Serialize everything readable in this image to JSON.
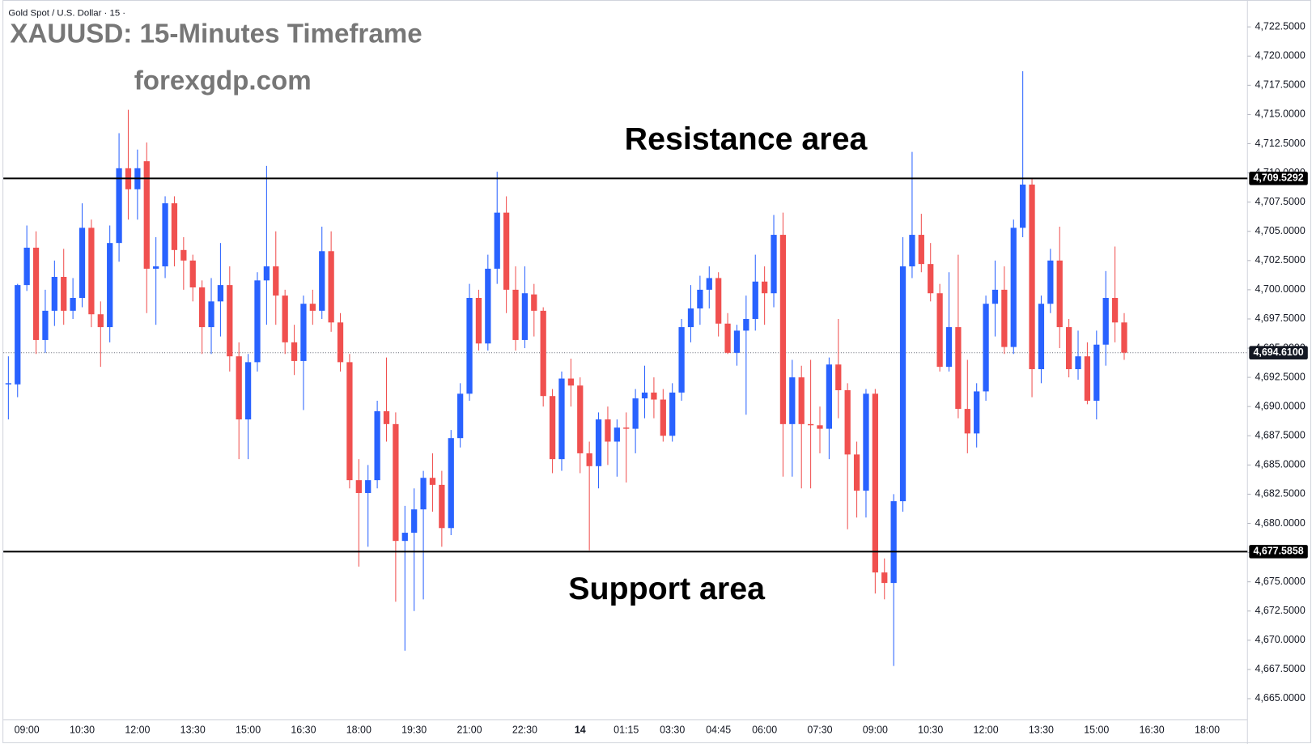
{
  "chart_data": {
    "type": "candlestick",
    "header": "Gold Spot / U.S. Dollar · 15 ·",
    "title": "XAUUSD: 15-Minutes Timeframe",
    "subtitle": "forexgdp.com",
    "annotations": [
      "Resistance area",
      "Support area"
    ],
    "up_color": "#2962ff",
    "down_color": "#f0504f",
    "categories": [
      null,
      null,
      "09:00",
      null,
      null,
      null,
      null,
      null,
      "10:30",
      null,
      null,
      null,
      null,
      null,
      "12:00",
      null,
      null,
      null,
      null,
      null,
      "13:30",
      null,
      null,
      null,
      null,
      null,
      "15:00",
      null,
      null,
      null,
      null,
      null,
      "16:30",
      null,
      null,
      null,
      null,
      null,
      "18:00",
      null,
      null,
      null,
      null,
      null,
      "19:30",
      null,
      null,
      null,
      null,
      null,
      "21:00",
      null,
      null,
      null,
      null,
      null,
      "22:30",
      null,
      null,
      null,
      null,
      null,
      "14",
      null,
      null,
      null,
      null,
      "01:15",
      null,
      null,
      null,
      null,
      "03:30",
      null,
      null,
      null,
      null,
      "04:45",
      null,
      null,
      null,
      null,
      "06:00",
      null,
      null,
      null,
      null,
      null,
      "07:30",
      null,
      null,
      null,
      null,
      null,
      "09:00",
      null,
      null,
      null,
      null,
      null,
      "10:30",
      null,
      null,
      null,
      null,
      null,
      "12:00",
      null,
      null,
      null,
      null,
      null,
      "13:30",
      null,
      null,
      null,
      null,
      null,
      "15:00",
      null,
      null,
      null,
      null,
      null,
      "16:30",
      null,
      null,
      null,
      null,
      null,
      "18:00",
      null
    ],
    "open": [
      4691.9,
      4691.9,
      4700.4,
      4703.6,
      4695.7,
      4698.2,
      4701.1,
      4698.2,
      4699.3,
      4705.3,
      4697.9,
      4696.8,
      4704,
      4710.4,
      4708.6,
      4711,
      4701.8,
      4702,
      4707.4,
      4703.4,
      4702.5,
      4700.2,
      4696.8,
      4699,
      4700.4,
      4694.3,
      4688.9,
      4693.8,
      4700.8,
      4702,
      4699.5,
      4695.5,
      4693.9,
      4698.8,
      4698.2,
      4703.3,
      4697.2,
      4693.8,
      4683.7,
      4682.6,
      4683.7,
      4689.6,
      4688.5,
      4678.5,
      4679.2,
      4681.2,
      4683.9,
      4683.3,
      4679.6,
      4687.3,
      4691.1,
      4699.3,
      4695.4,
      4701.8,
      4706.6,
      4700,
      4695.7,
      4699.6,
      4698.2,
      4690.9,
      4685.5,
      4692.4,
      4691.8,
      4686,
      4684.9,
      4688.9,
      4687,
      4688.2,
      4688.1,
      4690.7,
      4691.2,
      4690.6,
      4687.5,
      4691.2,
      4696.8,
      4698.4,
      4700,
      4701,
      4697.1,
      4694.6,
      4696.5,
      4697.5,
      4700.7,
      4699.7,
      4704.7,
      4688.5,
      4692.5,
      4688.5,
      4688.4,
      4688.1,
      4693.6,
      4691.4,
      4685.9,
      4682.8,
      4691.1,
      4675.8,
      4674.9,
      4681.9,
      4702,
      4704.7,
      4702.2,
      4699.7,
      4693.4,
      4696.8,
      4689.8,
      4687.7,
      4691.3,
      4698.8,
      4700,
      4695.1,
      4705.3,
      4709,
      4693.2,
      4698.8,
      4702.5,
      4696.8,
      4693.2,
      4694.3,
      4690.5,
      4695.3,
      4699.3,
      4697.2,
      null,
      null,
      null,
      null,
      null,
      null,
      null,
      null,
      null,
      null
    ],
    "high": [
      4694.3,
      4700.5,
      4705.5,
      4705,
      4700,
      4702.5,
      4703.5,
      4701,
      4707.4,
      4706,
      4699,
      4705.5,
      4713.4,
      4715.4,
      4712,
      4712.6,
      4704.5,
      4708,
      4708,
      4704.5,
      4703,
      4700.8,
      4701,
      4704,
      4702,
      4695.5,
      4694.5,
      4701.5,
      4710.6,
      4705,
      4700,
      4697,
      4699.5,
      4700,
      4705.4,
      4705,
      4698,
      4694.5,
      4685.5,
      4685,
      4690.5,
      4694.2,
      4689.5,
      4681.5,
      4683,
      4684.5,
      4686,
      4684.5,
      4688,
      4692,
      4700.5,
      4700,
      4703,
      4710.1,
      4708,
      4702,
      4702,
      4700.5,
      4698.5,
      4691.5,
      4693,
      4694.1,
      4692.5,
      4687,
      4689.5,
      4690,
      4688.9,
      4689.5,
      4691.5,
      4693.5,
      4692.5,
      4691.5,
      4692,
      4697.5,
      4700.4,
      4701.2,
      4702,
      4701.5,
      4698,
      4697,
      4699.5,
      4703,
      4702,
      4706.4,
      4706.6,
      4694,
      4693.5,
      4694,
      4690,
      4694.2,
      4697.5,
      4692,
      4687,
      4691.5,
      4691.5,
      4677,
      4682.5,
      4704.5,
      4711.8,
      4706.5,
      4704,
      4700.5,
      4701.5,
      4703,
      4694,
      4692,
      4699.5,
      4702.5,
      4702,
      4706,
      4718.7,
      4709.5,
      4699.5,
      4703.5,
      4705.4,
      4697.5,
      4696.5,
      4695.5,
      4696.5,
      4701.6,
      4703.7,
      4698,
      null,
      null,
      null,
      null,
      null,
      null,
      null,
      null,
      null,
      null
    ],
    "low": [
      4688.9,
      4690.8,
      4699.9,
      4694.5,
      4694.6,
      4696.9,
      4697,
      4697.5,
      4698.5,
      4696.8,
      4693.4,
      4695.5,
      4702.4,
      4706,
      4706,
      4698,
      4697,
      4701,
      4702,
      4700,
      4699,
      4694.5,
      4694.5,
      4696,
      4693,
      4685.5,
      4685.5,
      4693,
      4697,
      4697,
      4694.5,
      4692.7,
      4689.7,
      4697,
      4697.5,
      4696.4,
      4693,
      4683,
      4676.3,
      4678,
      4683,
      4687,
      4673.3,
      4669.1,
      4672.5,
      4673.5,
      4681,
      4678,
      4679,
      4686.5,
      4690.5,
      4694.8,
      4694.8,
      4700.5,
      4698,
      4694.8,
      4695,
      4696,
      4690,
      4684.3,
      4684.5,
      4690,
      4684.3,
      4677.7,
      4683,
      4685,
      4684,
      4683.5,
      4686,
      4689,
      4689,
      4687,
      4687,
      4690.5,
      4695.5,
      4697,
      4698.4,
      4696,
      4694.5,
      4693.5,
      4689.3,
      4696.5,
      4697,
      4698.5,
      4684,
      4684,
      4683,
      4683,
      4686,
      4685.5,
      4689,
      4679.5,
      4680.5,
      4680.5,
      4674,
      4673.5,
      4667.8,
      4681,
      4701,
      4701.5,
      4699,
      4693,
      4693,
      4689,
      4686,
      4686.5,
      4690.5,
      4696,
      4694.5,
      4694.5,
      4704.5,
      4690.8,
      4692,
      4698,
      4695,
      4692.5,
      4692.3,
      4690.2,
      4688.9,
      4693.5,
      4695.5,
      4694,
      null,
      null,
      null,
      null,
      null,
      null,
      null,
      null,
      null,
      null
    ],
    "close": [
      4692,
      4700.4,
      4703.6,
      4695.7,
      4698.2,
      4701.1,
      4698.2,
      4699.3,
      4705.3,
      4697.9,
      4696.8,
      4704,
      4710.4,
      4708.6,
      4710.4,
      4701.8,
      4702,
      4707.4,
      4703.4,
      4702.5,
      4700.2,
      4696.8,
      4699,
      4700.4,
      4694.3,
      4688.9,
      4693.8,
      4700.8,
      4702,
      4699.5,
      4695.5,
      4693.9,
      4698.8,
      4698.2,
      4703.3,
      4697.2,
      4693.8,
      4683.7,
      4682.6,
      4683.7,
      4689.6,
      4688.5,
      4678.5,
      4679.2,
      4681.2,
      4683.9,
      4683.3,
      4679.6,
      4687.3,
      4691.1,
      4699.3,
      4695.4,
      4701.8,
      4706.6,
      4700,
      4695.7,
      4699.7,
      4698.2,
      4690.9,
      4685.5,
      4692.4,
      4691.8,
      4686,
      4684.9,
      4688.9,
      4687,
      4688.2,
      4688.1,
      4690.7,
      4691.2,
      4690.6,
      4687.5,
      4691.2,
      4696.8,
      4698.4,
      4700,
      4701,
      4697.1,
      4694.6,
      4696.5,
      4697.5,
      4700.7,
      4699.7,
      4704.7,
      4688.5,
      4692.5,
      4688.5,
      4688.4,
      4688.1,
      4693.6,
      4691.4,
      4685.9,
      4682.8,
      4691.1,
      4675.8,
      4674.9,
      4681.9,
      4702,
      4704.7,
      4702.2,
      4699.7,
      4693.4,
      4696.8,
      4689.8,
      4687.7,
      4691.3,
      4698.8,
      4700,
      4695.1,
      4705.3,
      4709,
      4693.2,
      4698.8,
      4702.5,
      4696.8,
      4693.2,
      4694.3,
      4690.5,
      4695.3,
      4699.3,
      4697.2,
      4694.61,
      null,
      null,
      null,
      null,
      null,
      null,
      null,
      null,
      null,
      null
    ],
    "ylim": [
      4663.2,
      4724.8
    ],
    "yticks": [
      {
        "value": 4665,
        "label": "4,665.0000"
      },
      {
        "value": 4667.5,
        "label": "4,667.5000"
      },
      {
        "value": 4670,
        "label": "4,670.0000"
      },
      {
        "value": 4672.5,
        "label": "4,672.5000"
      },
      {
        "value": 4675,
        "label": "4,675.0000"
      },
      {
        "value": 4677.5,
        "label": "4,677.5000"
      },
      {
        "value": 4680,
        "label": "4,680.0000"
      },
      {
        "value": 4682.5,
        "label": "4,682.5000"
      },
      {
        "value": 4685,
        "label": "4,685.0000"
      },
      {
        "value": 4687.5,
        "label": "4,687.5000"
      },
      {
        "value": 4690,
        "label": "4,690.0000"
      },
      {
        "value": 4692.5,
        "label": "4,692.5000"
      },
      {
        "value": 4695,
        "label": "4,695.0000"
      },
      {
        "value": 4697.5,
        "label": "4,697.5000"
      },
      {
        "value": 4700,
        "label": "4,700.0000"
      },
      {
        "value": 4702.5,
        "label": "4,702.5000"
      },
      {
        "value": 4705,
        "label": "4,705.0000"
      },
      {
        "value": 4707.5,
        "label": "4,707.5000"
      },
      {
        "value": 4710,
        "label": "4,710.0000"
      },
      {
        "value": 4712.5,
        "label": "4,712.5000"
      },
      {
        "value": 4715,
        "label": "4,715.0000"
      },
      {
        "value": 4717.5,
        "label": "4,717.5000"
      },
      {
        "value": 4720,
        "label": "4,720.0000"
      },
      {
        "value": 4722.5,
        "label": "4,722.5000"
      }
    ],
    "levels": [
      {
        "value": 4709.5292,
        "label": "4,709.5292"
      },
      {
        "value": 4677.5858,
        "label": "4,677.5858"
      }
    ],
    "last_price": {
      "value": 4694.61,
      "label": "4,694.6100"
    }
  }
}
